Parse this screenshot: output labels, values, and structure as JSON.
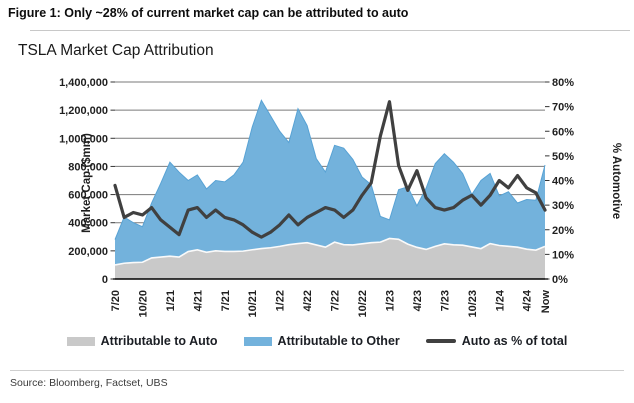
{
  "figure": {
    "title": "Figure 1: Only ~28% of current market cap can be attributed to auto"
  },
  "chart": {
    "title": "TSLA Market Cap Attribution"
  },
  "source": {
    "text": "Source: Bloomberg, Factset, UBS"
  },
  "colors": {
    "auto_area": "#c9c9c9",
    "auto_area_edge": "#fafafa",
    "other_area": "#73b2dc",
    "other_area_edge": "#58a2d4",
    "pct_line": "#404040",
    "gridline": "#7a7a7a",
    "axis": "#000000",
    "tick_text": "#1f1f1f"
  },
  "legend": [
    {
      "label": "Attributable to Auto",
      "type": "area",
      "color": "#c9c9c9"
    },
    {
      "label": "Attributable to Other",
      "type": "area",
      "color": "#73b2dc"
    },
    {
      "label": "Auto as % of total",
      "type": "line",
      "color": "#404040"
    }
  ],
  "chart_data": {
    "type": "area",
    "subtype": "stacked-area-with-line",
    "title": "TSLA Market Cap Attribution",
    "x": [
      "7/20",
      "8/20",
      "9/20",
      "10/20",
      "11/20",
      "12/20",
      "1/21",
      "2/21",
      "3/21",
      "4/21",
      "5/21",
      "6/21",
      "7/21",
      "8/21",
      "9/21",
      "10/21",
      "11/21",
      "12/21",
      "1/22",
      "2/22",
      "3/22",
      "4/22",
      "5/22",
      "6/22",
      "7/22",
      "8/22",
      "9/22",
      "10/22",
      "11/22",
      "12/22",
      "1/23",
      "2/23",
      "3/23",
      "4/23",
      "5/23",
      "6/23",
      "7/23",
      "8/23",
      "9/23",
      "10/23",
      "11/23",
      "12/23",
      "1/24",
      "2/24",
      "3/24",
      "4/24",
      "5/24",
      "Now"
    ],
    "x_tick_every": 3,
    "series": [
      {
        "name": "Attributable to Auto",
        "type": "area-stacked",
        "axis": "left",
        "values": [
          100000,
          112000,
          117000,
          119000,
          150000,
          156000,
          162000,
          156000,
          195000,
          207000,
          190000,
          200000,
          196000,
          196000,
          198000,
          208000,
          216000,
          222000,
          232000,
          244000,
          252000,
          258000,
          242000,
          226000,
          262000,
          244000,
          242000,
          250000,
          258000,
          262000,
          288000,
          282000,
          248000,
          225000,
          210000,
          232000,
          250000,
          243000,
          240000,
          228000,
          216000,
          252000,
          238000,
          232000,
          226000,
          212000,
          205000,
          232000
        ]
      },
      {
        "name": "Attributable to Other",
        "type": "area-stacked",
        "axis": "left",
        "values": [
          180000,
          328000,
          283000,
          253000,
          390000,
          524000,
          668000,
          604000,
          505000,
          533000,
          450000,
          500000,
          494000,
          544000,
          632000,
          872000,
          1054000,
          938000,
          818000,
          726000,
          958000,
          832000,
          613000,
          534000,
          688000,
          686000,
          608000,
          475000,
          412000,
          183000,
          132000,
          353000,
          407000,
          295000,
          435000,
          588000,
          640000,
          587000,
          510000,
          372000,
          484000,
          498000,
          352000,
          388000,
          314000,
          353000,
          355000,
          578000
        ]
      },
      {
        "name": "Auto as % of total",
        "type": "line",
        "axis": "right",
        "values": [
          38,
          25,
          27,
          26,
          29,
          24,
          21,
          18,
          28,
          29,
          25,
          28,
          25,
          24,
          22,
          19,
          17,
          19,
          22,
          26,
          22,
          25,
          27,
          29,
          28,
          25,
          28,
          34,
          39,
          58,
          72,
          46,
          36,
          44,
          33,
          29,
          28,
          29,
          32,
          34,
          30,
          34,
          40,
          37,
          42,
          37,
          35,
          28
        ]
      }
    ],
    "left_axis": {
      "label": "Market Cap ($mm)",
      "min": 0,
      "max": 1400000,
      "tick_step": 200000,
      "tick_labels": [
        "0",
        "200,000",
        "400,000",
        "600,000",
        "800,000",
        "1,000,000",
        "1,200,000",
        "1,400,000"
      ]
    },
    "right_axis": {
      "label": "% Automotive",
      "min": 0,
      "max": 80,
      "tick_step": 10,
      "tick_labels": [
        "0%",
        "10%",
        "20%",
        "30%",
        "40%",
        "50%",
        "60%",
        "70%",
        "80%"
      ]
    },
    "grid": true,
    "legend_position": "bottom"
  }
}
